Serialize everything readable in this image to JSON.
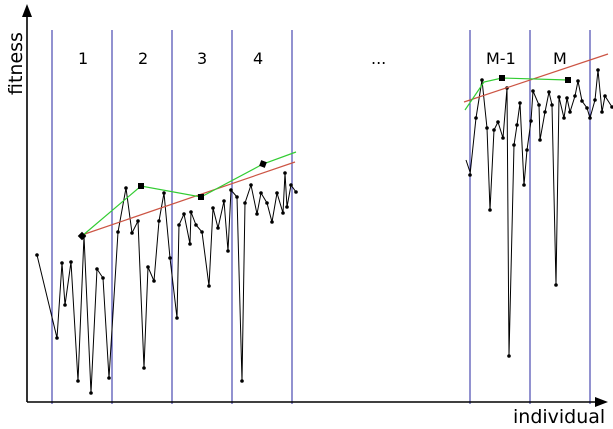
{
  "axes": {
    "y_label": "fitness",
    "x_label": "individual"
  },
  "segments": [
    "1",
    "2",
    "3",
    "4",
    "...",
    "M-1",
    "M"
  ],
  "colors": {
    "boundary": "#3a3aaa",
    "series": "#000000",
    "linear_fit": "#cc5544",
    "best_path": "#33cc33",
    "axis": "#000000"
  }
}
